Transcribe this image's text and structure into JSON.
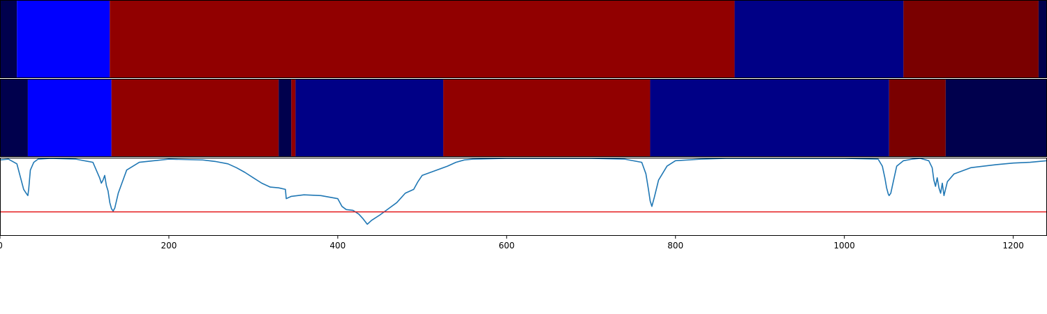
{
  "chart_data": [
    {
      "type": "heatmap",
      "panel": "segmentation-1",
      "xlim": [
        0,
        1240
      ],
      "segments": [
        {
          "start": 0,
          "end": 20,
          "color": "#00004d"
        },
        {
          "start": 20,
          "end": 130,
          "color": "#0000ff"
        },
        {
          "start": 130,
          "end": 870,
          "color": "#910000"
        },
        {
          "start": 870,
          "end": 1070,
          "color": "#000086"
        },
        {
          "start": 1070,
          "end": 1230,
          "color": "#7a0000"
        },
        {
          "start": 1230,
          "end": 1240,
          "color": "#00004d"
        }
      ]
    },
    {
      "type": "heatmap",
      "panel": "segmentation-2",
      "xlim": [
        0,
        1240
      ],
      "segments": [
        {
          "start": 0,
          "end": 33,
          "color": "#00004d"
        },
        {
          "start": 33,
          "end": 132,
          "color": "#0000ff"
        },
        {
          "start": 132,
          "end": 330,
          "color": "#910000"
        },
        {
          "start": 330,
          "end": 345,
          "color": "#00004d"
        },
        {
          "start": 345,
          "end": 350,
          "color": "#910000"
        },
        {
          "start": 350,
          "end": 525,
          "color": "#000086"
        },
        {
          "start": 525,
          "end": 770,
          "color": "#910000"
        },
        {
          "start": 770,
          "end": 1053,
          "color": "#000086"
        },
        {
          "start": 1053,
          "end": 1120,
          "color": "#7a0000"
        },
        {
          "start": 1120,
          "end": 1240,
          "color": "#00004d"
        }
      ]
    },
    {
      "type": "line",
      "panel": "signal",
      "xlim": [
        0,
        1240
      ],
      "ylim": [
        0,
        1
      ],
      "xticks": [
        "0",
        "200",
        "400",
        "600",
        "800",
        "1000",
        "1200"
      ],
      "xtick_values": [
        0,
        200,
        400,
        600,
        800,
        1000,
        1200
      ],
      "series_color": "#1f77b4",
      "threshold": {
        "y": 0.31,
        "color": "#e41a1c"
      },
      "x": [
        0,
        10,
        20,
        28,
        31,
        33,
        34,
        36,
        40,
        45,
        60,
        90,
        110,
        118,
        120,
        122,
        124,
        126,
        128,
        130,
        132,
        134,
        136,
        140,
        150,
        165,
        200,
        240,
        255,
        270,
        280,
        290,
        300,
        310,
        320,
        330,
        338,
        339,
        345,
        360,
        380,
        400,
        405,
        410,
        418,
        425,
        430,
        435,
        440,
        450,
        460,
        470,
        480,
        490,
        495,
        500,
        515,
        530,
        540,
        550,
        560,
        600,
        640,
        700,
        740,
        760,
        765,
        768,
        770,
        772,
        775,
        780,
        790,
        800,
        830,
        860,
        900,
        960,
        1000,
        1040,
        1045,
        1048,
        1050,
        1052,
        1053,
        1055,
        1058,
        1062,
        1070,
        1080,
        1090,
        1100,
        1104,
        1106,
        1108,
        1110,
        1112,
        1114,
        1116,
        1118,
        1122,
        1130,
        1150,
        1180,
        1200,
        1220,
        1240
      ],
      "values": [
        0.98,
        0.99,
        0.93,
        0.6,
        0.55,
        0.52,
        0.6,
        0.85,
        0.95,
        0.99,
        1.0,
        0.99,
        0.95,
        0.75,
        0.68,
        0.72,
        0.78,
        0.65,
        0.58,
        0.43,
        0.35,
        0.32,
        0.36,
        0.55,
        0.85,
        0.95,
        0.99,
        0.98,
        0.96,
        0.93,
        0.88,
        0.82,
        0.75,
        0.68,
        0.63,
        0.62,
        0.6,
        0.48,
        0.51,
        0.53,
        0.52,
        0.48,
        0.38,
        0.34,
        0.33,
        0.28,
        0.22,
        0.15,
        0.2,
        0.27,
        0.35,
        0.43,
        0.55,
        0.6,
        0.7,
        0.78,
        0.84,
        0.9,
        0.95,
        0.98,
        0.99,
        1.0,
        1.0,
        1.0,
        0.99,
        0.95,
        0.8,
        0.6,
        0.45,
        0.38,
        0.5,
        0.72,
        0.9,
        0.97,
        0.99,
        1.0,
        1.0,
        1.0,
        1.0,
        0.99,
        0.9,
        0.75,
        0.62,
        0.54,
        0.52,
        0.55,
        0.7,
        0.9,
        0.97,
        0.99,
        1.0,
        0.97,
        0.88,
        0.72,
        0.64,
        0.75,
        0.62,
        0.55,
        0.68,
        0.52,
        0.7,
        0.8,
        0.88,
        0.92,
        0.94,
        0.95,
        0.97
      ]
    }
  ]
}
